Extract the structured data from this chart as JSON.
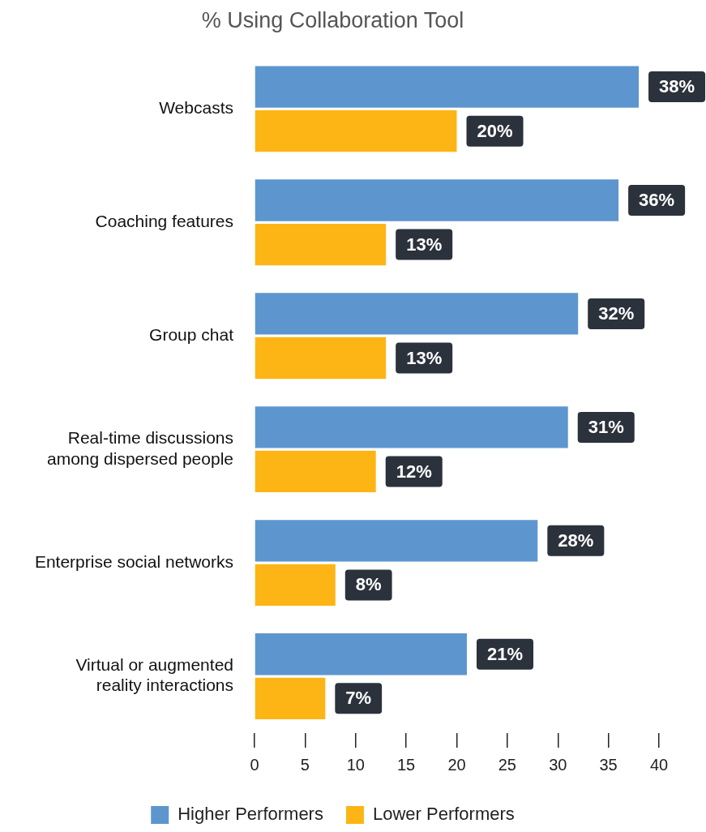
{
  "chart_data": {
    "type": "bar",
    "orientation": "horizontal",
    "title": "% Using Collaboration Tool",
    "categories": [
      "Webcasts",
      "Coaching features",
      "Group chat",
      "Real-time discussions\namong dispersed people",
      "Enterprise social networks",
      "Virtual or augmented\nreality interactions"
    ],
    "series": [
      {
        "name": "Higher Performers",
        "color": "#5d96cf",
        "values": [
          38,
          36,
          32,
          31,
          28,
          21
        ],
        "value_labels": [
          "38%",
          "36%",
          "32%",
          "31%",
          "28%",
          "21%"
        ]
      },
      {
        "name": "Lower Performers",
        "color": "#fdb515",
        "values": [
          20,
          13,
          13,
          12,
          8,
          7
        ],
        "value_labels": [
          "20%",
          "13%",
          "13%",
          "12%",
          "8%",
          "7%"
        ]
      }
    ],
    "xlim": [
      0,
      40
    ],
    "xticks": [
      0,
      5,
      10,
      15,
      20,
      25,
      30,
      35,
      40
    ],
    "grid": false,
    "legend": "bottom"
  }
}
